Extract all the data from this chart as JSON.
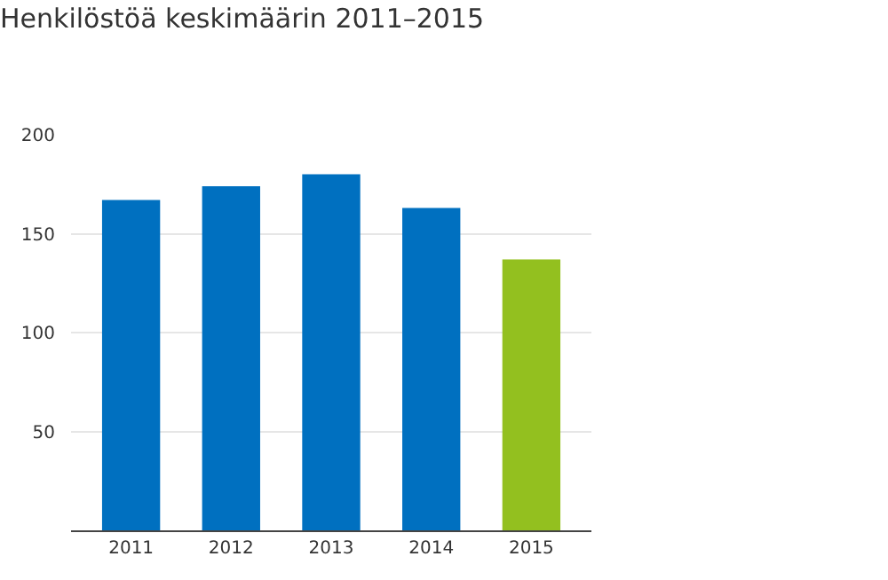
{
  "chart_data": {
    "type": "bar",
    "title": "Henkilöstöä keskimäärin 2011–2015",
    "categories": [
      "2011",
      "2012",
      "2013",
      "2014",
      "2015"
    ],
    "values": [
      167,
      174,
      180,
      163,
      137
    ],
    "colors": [
      "#0070c0",
      "#0070c0",
      "#0070c0",
      "#0070c0",
      "#93c01f"
    ],
    "ylim": [
      0,
      200
    ],
    "yticks": [
      50,
      100,
      150,
      200
    ],
    "grid": "y"
  }
}
